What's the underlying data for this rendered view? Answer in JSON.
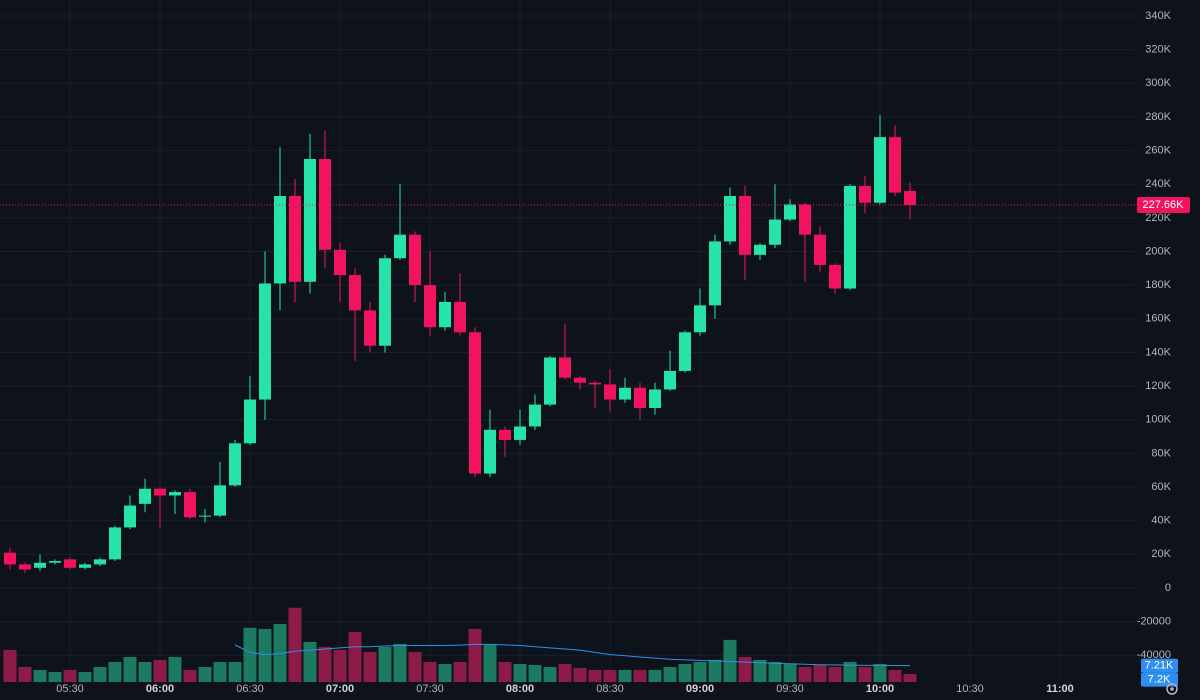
{
  "chart_data": {
    "type": "candlestick",
    "categories": [
      null,
      null,
      null,
      null,
      "05:30",
      null,
      null,
      null,
      null,
      null,
      "06:00",
      null,
      null,
      null,
      null,
      null,
      "06:30",
      null,
      null,
      null,
      null,
      null,
      "07:00",
      null,
      null,
      null,
      null,
      null,
      "07:30",
      null,
      null,
      null,
      null,
      null,
      "08:00",
      null,
      null,
      null,
      null,
      null,
      "08:30",
      null,
      null,
      null,
      null,
      null,
      "09:00",
      null,
      null,
      null,
      null,
      null,
      "09:30",
      null,
      null,
      null,
      null,
      null,
      "10:00",
      null,
      null,
      null,
      null,
      null,
      "10:30",
      null,
      null,
      null,
      null,
      null,
      "11:00"
    ],
    "open": [
      21000,
      14000,
      12000,
      15000,
      17000,
      12000,
      14000,
      17000,
      36000,
      50000,
      59000,
      55000,
      57000,
      42500,
      43000,
      61000,
      86000,
      112000,
      181000,
      233000,
      182000,
      255000,
      201000,
      186000,
      165000,
      144000,
      196000,
      210000,
      180000,
      155000,
      170000,
      152000,
      68000,
      94000,
      88000,
      96000,
      109000,
      137000,
      125000,
      122000,
      121000,
      112000,
      119000,
      107000,
      118000,
      129000,
      152000,
      168000,
      206000,
      233000,
      198000,
      204000,
      219000,
      228000,
      210000,
      192000,
      178000,
      239000,
      229000,
      268000,
      236000,
      null,
      null,
      null,
      null,
      null,
      null,
      null,
      null,
      null,
      null
    ],
    "high": [
      24000,
      15000,
      20000,
      17000,
      18000,
      15000,
      18000,
      37000,
      55000,
      65000,
      60000,
      58000,
      59000,
      47000,
      75000,
      88000,
      126000,
      200000,
      262000,
      243000,
      270000,
      272000,
      205000,
      190000,
      170000,
      198000,
      240000,
      212000,
      200000,
      176000,
      187000,
      155000,
      106000,
      96000,
      106000,
      115000,
      138000,
      157000,
      126000,
      123000,
      130000,
      125000,
      122000,
      122000,
      141000,
      153000,
      178000,
      210000,
      238000,
      239000,
      205000,
      240000,
      231000,
      229000,
      215000,
      193000,
      240000,
      245000,
      281000,
      275000,
      241000,
      null,
      null,
      null,
      null,
      null,
      null,
      null,
      null,
      null,
      null
    ],
    "low": [
      11000,
      9000,
      10000,
      14000,
      11000,
      11000,
      13000,
      16000,
      35000,
      45000,
      36000,
      44000,
      41000,
      39000,
      42000,
      60000,
      85000,
      100000,
      165000,
      170000,
      175000,
      190000,
      170000,
      135000,
      140000,
      140000,
      195000,
      170000,
      150000,
      153000,
      150000,
      66000,
      66000,
      78000,
      85000,
      94000,
      108000,
      124000,
      118000,
      107000,
      105000,
      110000,
      100000,
      103000,
      117000,
      128000,
      150000,
      160000,
      204000,
      183000,
      195000,
      202000,
      218000,
      182000,
      188000,
      175000,
      177000,
      223000,
      228000,
      233000,
      219000,
      null,
      null,
      null,
      null,
      null,
      null,
      null,
      null,
      null,
      null
    ],
    "close": [
      14000,
      11000,
      15000,
      16000,
      12000,
      14000,
      17000,
      36000,
      49000,
      59000,
      55000,
      57000,
      42000,
      43000,
      61000,
      86000,
      112000,
      181000,
      233000,
      182000,
      255000,
      201000,
      186000,
      165000,
      144000,
      196000,
      210000,
      180000,
      155000,
      170000,
      152000,
      68000,
      94000,
      88000,
      96000,
      109000,
      137000,
      125000,
      122000,
      121000,
      112000,
      119000,
      107000,
      118000,
      129000,
      152000,
      168000,
      206000,
      233000,
      198000,
      204000,
      219000,
      228000,
      210000,
      192000,
      178000,
      239000,
      229000,
      268000,
      235000,
      227660,
      null,
      null,
      null,
      null,
      null,
      null,
      null,
      null,
      null,
      null
    ],
    "up_color": "#26e3a8",
    "down_color": "#f2135f",
    "ylim": [
      -54700,
      349500
    ],
    "yticks": [
      -40000,
      -20000,
      0,
      {
        "value": 20000,
        "label": "20K"
      },
      {
        "value": 40000,
        "label": "40K"
      },
      {
        "value": 60000,
        "label": "60K"
      },
      {
        "value": 80000,
        "label": "80K"
      },
      {
        "value": 100000,
        "label": "100K"
      },
      {
        "value": 120000,
        "label": "120K"
      },
      {
        "value": 140000,
        "label": "140K"
      },
      {
        "value": 160000,
        "label": "160K"
      },
      {
        "value": 180000,
        "label": "180K"
      },
      {
        "value": 200000,
        "label": "200K"
      },
      {
        "value": 220000,
        "label": "220K"
      },
      {
        "value": 240000,
        "label": "240K"
      },
      {
        "value": 260000,
        "label": "260K"
      },
      {
        "value": 280000,
        "label": "280K"
      },
      {
        "value": 300000,
        "label": "300K"
      },
      {
        "value": 320000,
        "label": "320K"
      },
      {
        "value": 340000,
        "label": "340K"
      }
    ],
    "grid": true,
    "last_price": {
      "value": 227660,
      "label": "227.66K"
    },
    "volume": {
      "values": [
        14100,
        6600,
        5300,
        4400,
        5300,
        4400,
        6600,
        8800,
        11000,
        8800,
        9700,
        11000,
        5300,
        6600,
        8800,
        8800,
        23800,
        23300,
        25500,
        32600,
        17600,
        15400,
        14100,
        22000,
        13200,
        15400,
        16700,
        13200,
        8800,
        7900,
        8800,
        23300,
        16300,
        8800,
        7900,
        7500,
        6600,
        7900,
        6200,
        5300,
        5300,
        5300,
        5300,
        5300,
        6600,
        7900,
        8800,
        9700,
        18500,
        11000,
        9700,
        8800,
        7900,
        6600,
        7500,
        6600,
        8800,
        6600,
        7900,
        5300,
        3500,
        null,
        null,
        null,
        null,
        null,
        null,
        null,
        null,
        null,
        null
      ],
      "ylim": [
        0,
        36000
      ],
      "up_color": "#1b7a5f",
      "down_color": "#8c1b47"
    },
    "volume_ma": {
      "values": [
        null,
        null,
        null,
        null,
        null,
        null,
        null,
        null,
        null,
        null,
        null,
        null,
        null,
        null,
        null,
        16300,
        13000,
        12000,
        12500,
        13500,
        14000,
        14500,
        15000,
        15500,
        15500,
        15800,
        16000,
        16000,
        16000,
        16000,
        16200,
        16500,
        16500,
        16300,
        16000,
        15500,
        15000,
        14500,
        14000,
        13000,
        12000,
        11500,
        11000,
        10500,
        10000,
        9700,
        9500,
        9300,
        9000,
        8800,
        8500,
        8200,
        8000,
        7800,
        7600,
        7500,
        7400,
        7300,
        7300,
        7250,
        7210,
        null,
        null,
        null,
        null,
        null,
        null,
        null,
        null,
        null,
        null
      ],
      "color": "#2f8ff0",
      "labels": [
        {
          "value": 7210,
          "label": "7.21K"
        },
        {
          "value": 7200,
          "label": "7.2K"
        }
      ]
    }
  }
}
